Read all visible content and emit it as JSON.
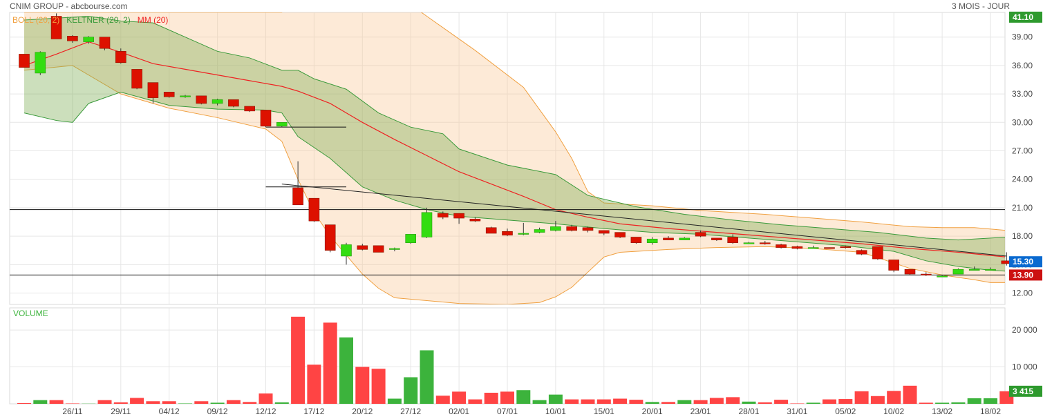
{
  "header": {
    "title": "CNIM GROUP - abcbourse.com",
    "period": "3 MOIS - JOUR"
  },
  "colors": {
    "up": "#33dd11",
    "down": "#dd1100",
    "boll": "#f0a040",
    "keltner": "#3a9a3a",
    "mm": "#ee2222",
    "vol_up": "#3cb33c",
    "vol_down": "#ff4444",
    "grid": "#e6e6e6"
  },
  "chart_data": [
    {
      "type": "candlestick",
      "legend": [
        {
          "name": "BOLL (20, 2)",
          "color": "#f0a040"
        },
        {
          "name": "KELTNER (20, 2)",
          "color": "#3a9a3a"
        },
        {
          "name": "MM (20)",
          "color": "#ee2222"
        }
      ],
      "ylim": [
        10.8,
        41.6
      ],
      "yticks": [
        "12.00",
        "15.00",
        "18.00",
        "21.00",
        "24.00",
        "27.00",
        "30.00",
        "33.00",
        "36.00",
        "39.00"
      ],
      "x_labels": [
        {
          "i": 3,
          "label": "26/11"
        },
        {
          "i": 6,
          "label": "29/11"
        },
        {
          "i": 9,
          "label": "04/12"
        },
        {
          "i": 12,
          "label": "09/12"
        },
        {
          "i": 15,
          "label": "12/12"
        },
        {
          "i": 18,
          "label": "17/12"
        },
        {
          "i": 21,
          "label": "20/12"
        },
        {
          "i": 24,
          "label": "27/12"
        },
        {
          "i": 27,
          "label": "02/01"
        },
        {
          "i": 30,
          "label": "07/01"
        },
        {
          "i": 33,
          "label": "10/01"
        },
        {
          "i": 36,
          "label": "15/01"
        },
        {
          "i": 39,
          "label": "20/01"
        },
        {
          "i": 42,
          "label": "23/01"
        },
        {
          "i": 45,
          "label": "28/01"
        },
        {
          "i": 48,
          "label": "31/01"
        },
        {
          "i": 51,
          "label": "05/02"
        },
        {
          "i": 54,
          "label": "10/02"
        },
        {
          "i": 57,
          "label": "13/02"
        },
        {
          "i": 60,
          "label": "18/02"
        }
      ],
      "ohlc": [
        [
          37.2,
          37.2,
          35.8,
          35.8
        ],
        [
          35.2,
          37.5,
          35.0,
          37.4
        ],
        [
          41.2,
          41.5,
          38.8,
          38.8
        ],
        [
          39.1,
          39.2,
          38.4,
          38.6
        ],
        [
          38.5,
          39.1,
          38.3,
          39.0
        ],
        [
          39.0,
          39.0,
          37.6,
          37.8
        ],
        [
          37.5,
          37.8,
          36.2,
          36.3
        ],
        [
          35.6,
          35.6,
          33.5,
          33.6
        ],
        [
          34.2,
          34.2,
          32.0,
          32.6
        ],
        [
          33.2,
          33.2,
          32.6,
          32.7
        ],
        [
          32.8,
          32.9,
          32.6,
          32.8
        ],
        [
          32.8,
          32.8,
          31.9,
          32.0
        ],
        [
          32.0,
          32.5,
          31.8,
          32.4
        ],
        [
          32.4,
          32.4,
          31.6,
          31.7
        ],
        [
          31.7,
          31.7,
          31.1,
          31.2
        ],
        [
          31.3,
          31.3,
          29.5,
          29.6
        ],
        [
          29.6,
          30.0,
          29.5,
          30.0
        ],
        [
          23.1,
          25.9,
          21.3,
          21.3
        ],
        [
          22.0,
          22.0,
          19.5,
          19.6
        ],
        [
          19.2,
          19.2,
          16.3,
          16.5
        ],
        [
          15.9,
          17.3,
          15.0,
          17.1
        ],
        [
          17.0,
          17.2,
          16.5,
          16.6
        ],
        [
          17.0,
          17.0,
          16.3,
          16.3
        ],
        [
          16.6,
          16.8,
          16.4,
          16.7
        ],
        [
          17.3,
          18.2,
          17.2,
          18.2
        ],
        [
          17.9,
          21.0,
          17.8,
          20.5
        ],
        [
          20.4,
          20.6,
          19.8,
          20.0
        ],
        [
          20.4,
          20.4,
          19.3,
          19.9
        ],
        [
          19.8,
          20.0,
          19.5,
          19.6
        ],
        [
          18.9,
          19.0,
          18.3,
          18.3
        ],
        [
          18.5,
          18.8,
          18.0,
          18.1
        ],
        [
          18.2,
          19.4,
          18.1,
          18.3
        ],
        [
          18.4,
          18.9,
          18.3,
          18.7
        ],
        [
          18.6,
          19.6,
          18.5,
          19.0
        ],
        [
          19.0,
          19.2,
          18.5,
          18.6
        ],
        [
          18.9,
          19.0,
          18.4,
          18.6
        ],
        [
          18.6,
          18.6,
          18.1,
          18.3
        ],
        [
          18.4,
          18.4,
          17.8,
          17.9
        ],
        [
          17.9,
          17.9,
          17.2,
          17.3
        ],
        [
          17.3,
          17.9,
          17.1,
          17.7
        ],
        [
          17.8,
          18.0,
          17.6,
          17.6
        ],
        [
          17.6,
          17.9,
          17.6,
          17.8
        ],
        [
          18.4,
          18.6,
          17.9,
          18.0
        ],
        [
          17.8,
          17.8,
          17.5,
          17.6
        ],
        [
          17.9,
          18.2,
          17.2,
          17.3
        ],
        [
          17.3,
          17.4,
          17.2,
          17.3
        ],
        [
          17.3,
          17.5,
          17.1,
          17.2
        ],
        [
          17.1,
          17.2,
          16.7,
          16.8
        ],
        [
          16.9,
          17.0,
          16.6,
          16.7
        ],
        [
          16.8,
          17.0,
          16.7,
          16.8
        ],
        [
          16.8,
          16.8,
          16.7,
          16.7
        ],
        [
          16.9,
          17.0,
          16.7,
          16.8
        ],
        [
          16.5,
          16.6,
          16.0,
          16.1
        ],
        [
          16.9,
          16.9,
          15.5,
          15.6
        ],
        [
          15.5,
          15.5,
          14.2,
          14.4
        ],
        [
          14.5,
          14.5,
          13.9,
          14.0
        ],
        [
          14.0,
          14.2,
          13.8,
          13.9
        ],
        [
          13.8,
          13.9,
          13.7,
          13.8
        ],
        [
          14.0,
          14.6,
          14.0,
          14.5
        ],
        [
          14.5,
          14.8,
          14.4,
          14.5
        ],
        [
          14.5,
          14.7,
          14.4,
          14.5
        ],
        [
          15.4,
          16.3,
          14.9,
          15.1
        ]
      ],
      "boll_upper": [
        [
          0,
          41.6
        ],
        [
          15,
          41.6
        ],
        [
          16,
          41.6
        ],
        [
          17,
          48.2
        ],
        [
          20,
          45.5
        ],
        [
          24,
          42.4
        ],
        [
          25,
          41.2
        ],
        [
          28,
          37.6
        ],
        [
          31,
          33.7
        ],
        [
          33,
          29.0
        ],
        [
          34,
          26.2
        ],
        [
          35,
          22.7
        ],
        [
          36,
          21.5
        ],
        [
          39,
          21.2
        ],
        [
          42,
          20.7
        ],
        [
          46,
          20.3
        ],
        [
          49,
          19.9
        ],
        [
          52,
          19.5
        ],
        [
          55,
          19.0
        ],
        [
          57,
          18.9
        ],
        [
          59,
          18.9
        ],
        [
          61,
          18.6
        ]
      ],
      "boll_lower": [
        [
          0,
          35.5
        ],
        [
          3,
          36.0
        ],
        [
          6,
          33.0
        ],
        [
          9,
          31.5
        ],
        [
          12,
          30.5
        ],
        [
          15,
          29.3
        ],
        [
          16,
          28.0
        ],
        [
          17,
          24.0
        ],
        [
          18,
          20.5
        ],
        [
          19,
          18.0
        ],
        [
          20,
          16.0
        ],
        [
          21,
          14.0
        ],
        [
          22,
          12.5
        ],
        [
          23,
          11.5
        ],
        [
          25,
          11.2
        ],
        [
          27,
          10.9
        ],
        [
          30,
          10.8
        ],
        [
          32,
          11.0
        ],
        [
          33,
          11.6
        ],
        [
          34,
          12.6
        ],
        [
          35,
          14.2
        ],
        [
          36,
          15.8
        ],
        [
          37,
          16.3
        ],
        [
          40,
          16.6
        ],
        [
          43,
          16.8
        ],
        [
          46,
          16.9
        ],
        [
          49,
          16.7
        ],
        [
          52,
          16.3
        ],
        [
          55,
          14.6
        ],
        [
          57,
          13.9
        ],
        [
          59,
          13.4
        ],
        [
          60,
          13.1
        ],
        [
          61,
          13.1
        ]
      ],
      "kelt_upper": [
        [
          0,
          40.8
        ],
        [
          2,
          41.0
        ],
        [
          4,
          41.2
        ],
        [
          6,
          40.7
        ],
        [
          8,
          40.5
        ],
        [
          10,
          39.0
        ],
        [
          12,
          37.5
        ],
        [
          14,
          36.8
        ],
        [
          16,
          35.5
        ],
        [
          17,
          35.5
        ],
        [
          18,
          34.6
        ],
        [
          20,
          33.5
        ],
        [
          22,
          31.0
        ],
        [
          24,
          29.5
        ],
        [
          26,
          28.8
        ],
        [
          27,
          27.2
        ],
        [
          30,
          25.5
        ],
        [
          33,
          24.5
        ],
        [
          35,
          22.3
        ],
        [
          38,
          21.1
        ],
        [
          41,
          20.3
        ],
        [
          44,
          19.7
        ],
        [
          47,
          19.2
        ],
        [
          50,
          18.8
        ],
        [
          53,
          18.4
        ],
        [
          56,
          17.8
        ],
        [
          58,
          17.6
        ],
        [
          61,
          17.9
        ]
      ],
      "kelt_lower": [
        [
          0,
          31.0
        ],
        [
          2,
          30.2
        ],
        [
          3,
          30.0
        ],
        [
          4,
          32.0
        ],
        [
          6,
          33.2
        ],
        [
          9,
          31.8
        ],
        [
          12,
          31.4
        ],
        [
          15,
          31.3
        ],
        [
          16,
          31.0
        ],
        [
          17,
          28.5
        ],
        [
          19,
          26.2
        ],
        [
          21,
          23.2
        ],
        [
          23,
          21.8
        ],
        [
          25,
          20.8
        ],
        [
          27,
          20.1
        ],
        [
          30,
          19.7
        ],
        [
          33,
          19.3
        ],
        [
          36,
          18.8
        ],
        [
          39,
          18.4
        ],
        [
          42,
          18.2
        ],
        [
          45,
          17.8
        ],
        [
          48,
          17.4
        ],
        [
          51,
          17.0
        ],
        [
          54,
          16.4
        ],
        [
          56,
          15.4
        ],
        [
          58,
          14.8
        ],
        [
          60,
          14.4
        ],
        [
          61,
          14.3
        ]
      ],
      "mm": [
        [
          0,
          36.0
        ],
        [
          2,
          37.2
        ],
        [
          4,
          38.5
        ],
        [
          6,
          37.4
        ],
        [
          8,
          36.2
        ],
        [
          10,
          35.6
        ],
        [
          12,
          35.0
        ],
        [
          14,
          34.4
        ],
        [
          16,
          33.8
        ],
        [
          17,
          33.3
        ],
        [
          19,
          32.0
        ],
        [
          21,
          30.0
        ],
        [
          23,
          28.2
        ],
        [
          25,
          26.5
        ],
        [
          27,
          24.8
        ],
        [
          29,
          23.5
        ],
        [
          31,
          22.2
        ],
        [
          33,
          20.8
        ],
        [
          35,
          20.0
        ],
        [
          37,
          19.3
        ],
        [
          40,
          18.8
        ],
        [
          43,
          18.4
        ],
        [
          46,
          18.0
        ],
        [
          49,
          17.6
        ],
        [
          52,
          17.2
        ],
        [
          55,
          16.7
        ],
        [
          58,
          16.3
        ],
        [
          61,
          15.8
        ]
      ],
      "lines": [
        {
          "y": 20.8,
          "x1": -1,
          "x2": 61.6
        },
        {
          "y": 13.9,
          "x1": -1,
          "x2": 61.6
        },
        {
          "y": 29.5,
          "x1": 15,
          "x2": 20
        },
        {
          "y": 23.2,
          "x1": 15,
          "x2": 20
        }
      ],
      "trend": {
        "x1": 16,
        "y1": 23.5,
        "x2": 61,
        "y2": 15.9
      },
      "price_tags": [
        {
          "value": "41.10",
          "y": 41.1,
          "color": "#2e9a2e"
        },
        {
          "value": "15.30",
          "y": 15.3,
          "color": "#0a6ad0"
        },
        {
          "value": "13.90",
          "y": 13.9,
          "color": "#cc1111"
        }
      ]
    },
    {
      "type": "bar",
      "title": "VOLUME",
      "ylim": [
        0,
        26000
      ],
      "yticks": [
        "10 000",
        "20 000"
      ],
      "last_value": "3 415",
      "volumes": [
        200,
        1000,
        1000,
        100,
        50,
        1000,
        400,
        1600,
        700,
        700,
        100,
        700,
        300,
        1000,
        500,
        2800,
        400,
        23600,
        10600,
        22000,
        18000,
        10000,
        9500,
        1400,
        7200,
        14500,
        2200,
        3300,
        1200,
        3000,
        3300,
        3700,
        1000,
        2500,
        1200,
        1200,
        1200,
        1400,
        1100,
        500,
        500,
        1000,
        1000,
        1600,
        1800,
        600,
        400,
        1100,
        100,
        300,
        1200,
        1300,
        3400,
        2100,
        3500,
        4900,
        300,
        300,
        400,
        1500,
        1500,
        3400
      ]
    }
  ]
}
